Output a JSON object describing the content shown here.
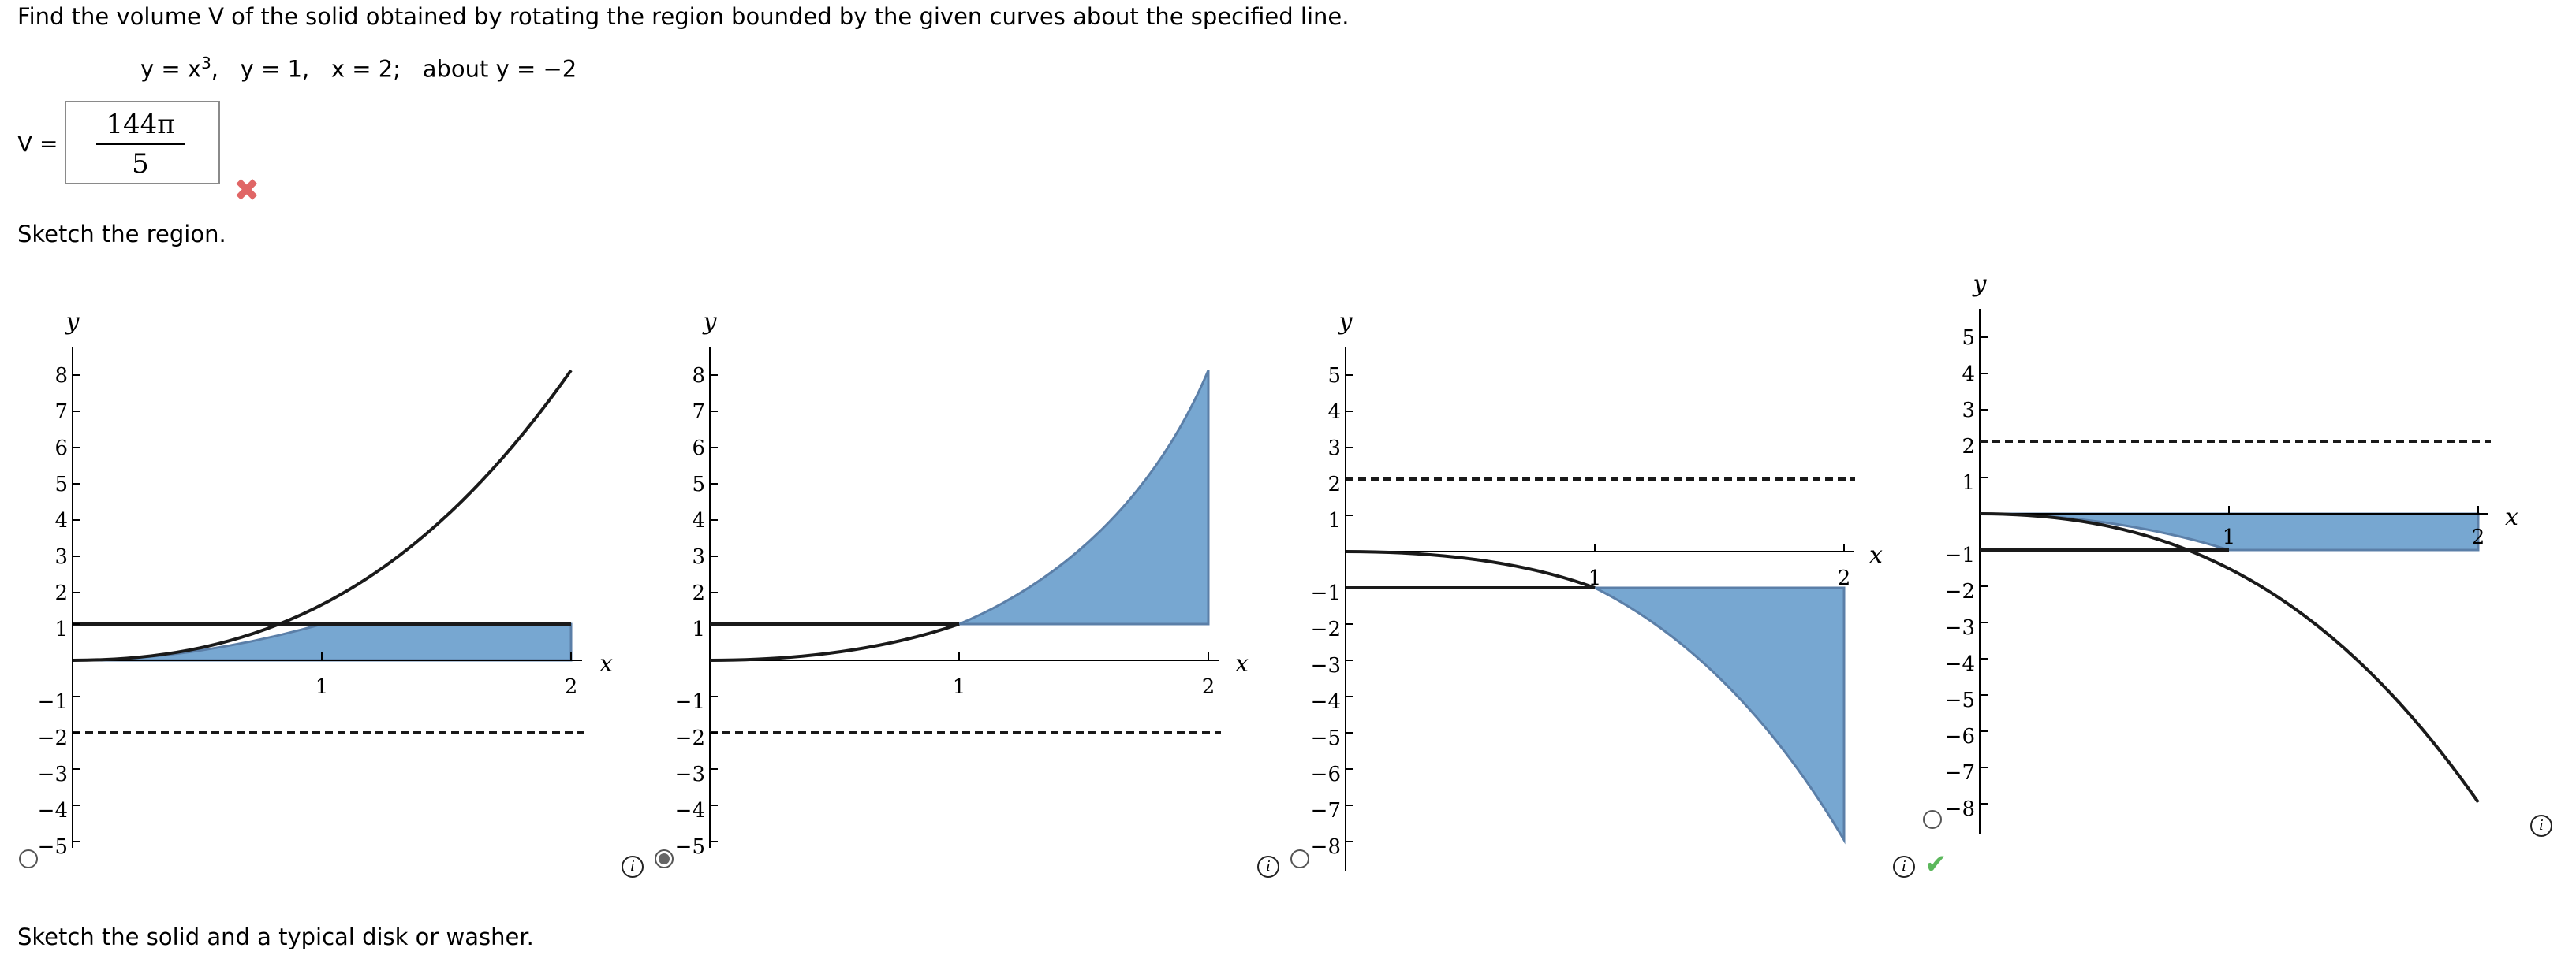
{
  "question": {
    "prompt": "Find the volume V of the solid obtained by rotating the region bounded by the given curves about the specified line.",
    "curve1": "y = x",
    "curve1_exp": "3",
    "curve1_sep": ",   ",
    "curve2": "y = 1,   ",
    "curve3": "x = 2;   ",
    "about": "about y = −2"
  },
  "answer": {
    "label": "V =",
    "numerator": "144π",
    "denominator": "5",
    "status": "incorrect",
    "status_icon": "x-mark-icon"
  },
  "sketch_prompt": "Sketch the region.",
  "sketch_prompt_2": "Sketch the solid and a typical disk or washer.",
  "colors": {
    "fill": "#77a7d1",
    "fill_stroke": "#5b7fa8",
    "curve": "#1a1a1a",
    "wrong": "#e06666",
    "correct": "#5cb85c"
  },
  "choices": [
    {
      "selected": false,
      "correct": false,
      "info_icon": false
    },
    {
      "selected": true,
      "correct": false,
      "info_icon": true
    },
    {
      "selected": false,
      "correct": false,
      "info_icon": true
    },
    {
      "selected": false,
      "correct": true,
      "info_icon": true
    }
  ],
  "chart_data": [
    {
      "type": "line",
      "xlabel": "x",
      "ylabel": "y",
      "xlim": [
        0,
        2
      ],
      "ylim": [
        -5,
        8
      ],
      "x_ticks": [
        "1",
        "2"
      ],
      "y_ticks": [
        "−5",
        "−4",
        "−3",
        "−2",
        "−1",
        "1",
        "2",
        "3",
        "4",
        "5",
        "6",
        "7",
        "8"
      ],
      "series": [
        {
          "function": "y = x^3",
          "x_range": [
            0,
            2
          ]
        },
        {
          "function": "y = 1",
          "x_range": [
            0,
            2
          ]
        },
        {
          "function": "y = -2",
          "style": "dashed",
          "x_range": [
            0,
            2
          ]
        }
      ],
      "shaded_region": "between y = 0 and y = min(x^3, 1), 0 ≤ x ≤ 2"
    },
    {
      "type": "line",
      "xlabel": "x",
      "ylabel": "y",
      "xlim": [
        0,
        2
      ],
      "ylim": [
        -5,
        8
      ],
      "x_ticks": [
        "1",
        "2"
      ],
      "y_ticks": [
        "−5",
        "−4",
        "−3",
        "−2",
        "−1",
        "1",
        "2",
        "3",
        "4",
        "5",
        "6",
        "7",
        "8"
      ],
      "series": [
        {
          "function": "y = x^3",
          "x_range": [
            0,
            2
          ]
        },
        {
          "function": "y = 1",
          "x_range": [
            0,
            1
          ]
        },
        {
          "function": "y = -2",
          "style": "dashed",
          "x_range": [
            0,
            2
          ]
        }
      ],
      "shaded_region": "between y = 1 and y = x^3, 1 ≤ x ≤ 2"
    },
    {
      "type": "line",
      "xlabel": "x",
      "ylabel": "y",
      "xlim": [
        0,
        2
      ],
      "ylim": [
        -8,
        5
      ],
      "x_ticks": [
        "1",
        "2"
      ],
      "y_ticks": [
        "−8",
        "−7",
        "−6",
        "−5",
        "−4",
        "−3",
        "−2",
        "−1",
        "1",
        "2",
        "3",
        "4",
        "5"
      ],
      "series": [
        {
          "function": "y = -x^3",
          "x_range": [
            0,
            2
          ]
        },
        {
          "function": "y = -1",
          "x_range": [
            0,
            1
          ]
        },
        {
          "function": "y = 2",
          "style": "dashed",
          "x_range": [
            0,
            2
          ]
        }
      ],
      "shaded_region": "between y = -x^3 and y = -1, 1 ≤ x ≤ 2"
    },
    {
      "type": "line",
      "xlabel": "x",
      "ylabel": "y",
      "xlim": [
        0,
        2
      ],
      "ylim": [
        -8,
        5
      ],
      "x_ticks": [
        "1",
        "2"
      ],
      "y_ticks": [
        "−8",
        "−7",
        "−6",
        "−5",
        "−4",
        "−3",
        "−2",
        "−1",
        "1",
        "2",
        "3",
        "4",
        "5"
      ],
      "series": [
        {
          "function": "y = -x^3",
          "x_range": [
            0,
            2
          ]
        },
        {
          "function": "y = -1",
          "x_range": [
            0,
            2
          ]
        },
        {
          "function": "y = 2",
          "style": "dashed",
          "x_range": [
            0,
            2
          ]
        }
      ],
      "shaded_region": "between y = max(-x^3, -1) and y = 0, 0 ≤ x ≤ 2"
    }
  ]
}
